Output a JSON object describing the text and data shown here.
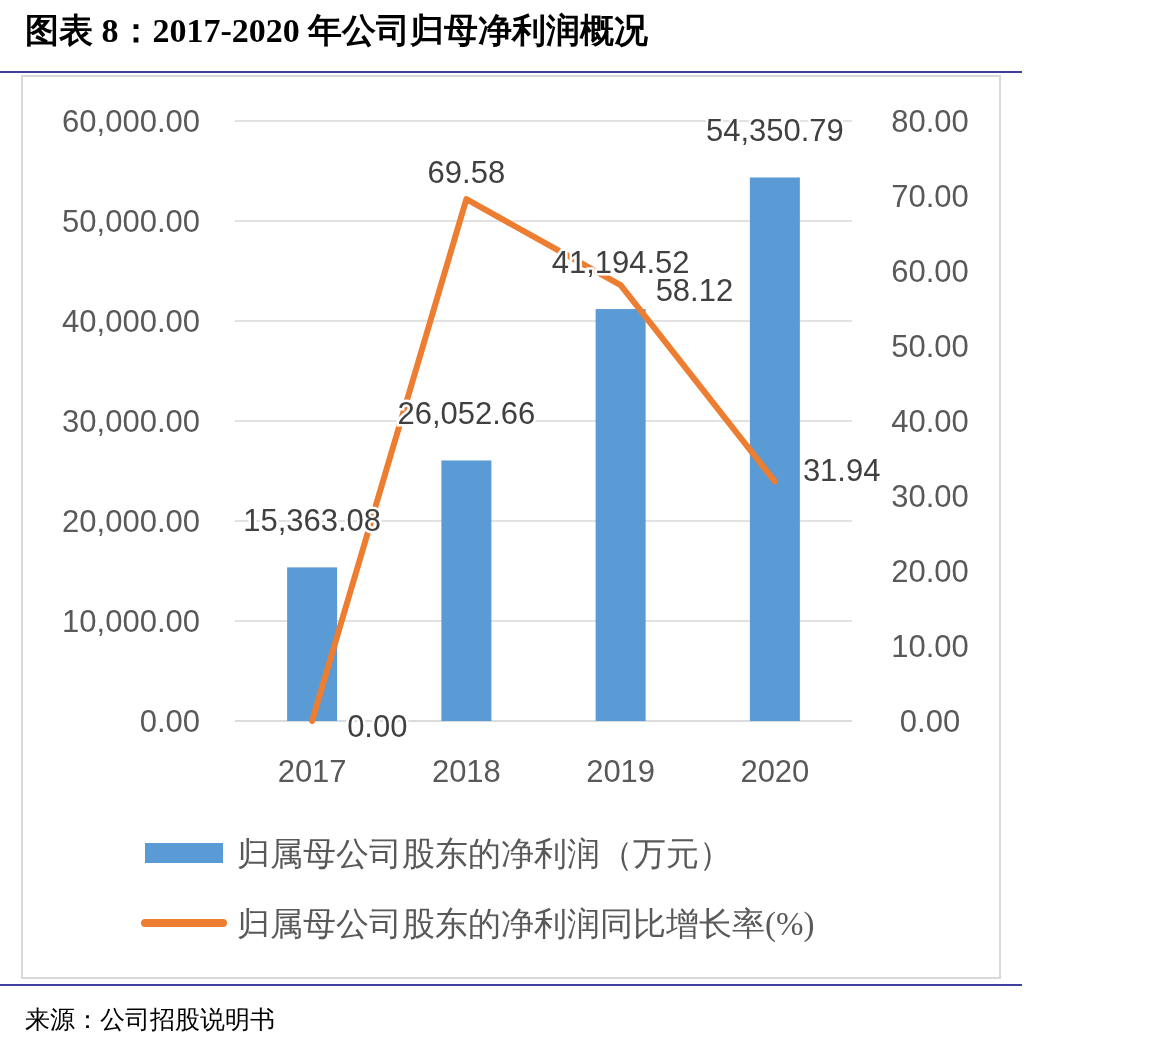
{
  "chart_data": {
    "type": "bar",
    "title": "图表 8：2017-2020 年公司归母净利润概况",
    "categories": [
      "2017",
      "2018",
      "2019",
      "2020"
    ],
    "series": [
      {
        "name": "归属母公司股东的净利润（万元）",
        "type": "bar",
        "color": "#5b9bd5",
        "values": [
          15363.08,
          26052.66,
          41194.52,
          54350.79
        ],
        "value_labels": [
          "15,363.08",
          "26,052.66",
          "41,194.52",
          "54,350.79"
        ]
      },
      {
        "name": "归属母公司股东的净利润同比增长率(%)",
        "type": "line",
        "axis": "y2",
        "color": "#ed7d31",
        "values": [
          0,
          69.58,
          58.12,
          31.94
        ],
        "value_labels": [
          "0.00",
          "69.58",
          "58.12",
          "31.94"
        ]
      }
    ],
    "ylim": [
      0,
      60000
    ],
    "yticks": [
      {
        "value": 0,
        "label": "0.00"
      },
      {
        "value": 10000,
        "label": "10,000.00"
      },
      {
        "value": 20000,
        "label": "20,000.00"
      },
      {
        "value": 30000,
        "label": "30,000.00"
      },
      {
        "value": 40000,
        "label": "40,000.00"
      },
      {
        "value": 50000,
        "label": "50,000.00"
      },
      {
        "value": 60000,
        "label": "60,000.00"
      }
    ],
    "y2lim": [
      0,
      80
    ],
    "y2ticks": [
      {
        "value": 0,
        "label": "0.00"
      },
      {
        "value": 10,
        "label": "10.00"
      },
      {
        "value": 20,
        "label": "20.00"
      },
      {
        "value": 30,
        "label": "30.00"
      },
      {
        "value": 40,
        "label": "40.00"
      },
      {
        "value": 50,
        "label": "50.00"
      },
      {
        "value": 60,
        "label": "60.00"
      },
      {
        "value": 70,
        "label": "70.00"
      },
      {
        "value": 80,
        "label": "80.00"
      }
    ],
    "grid": "y",
    "legend": "bottom",
    "annotations": [
      "来源：公司招股说明书"
    ]
  }
}
